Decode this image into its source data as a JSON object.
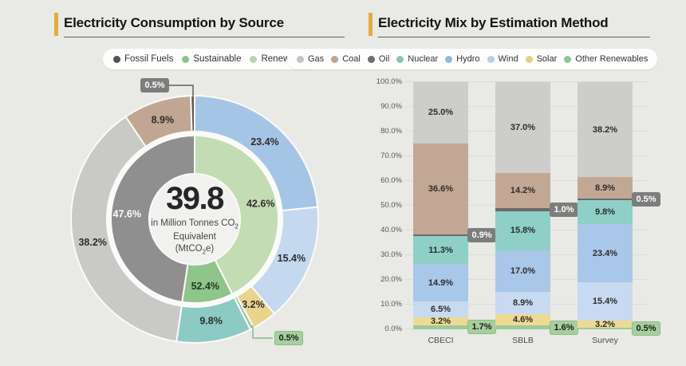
{
  "left": {
    "title": "Electricity Consumption by Source",
    "accent_color": "#e4ab3e",
    "legend": [
      {
        "label": "Fossil Fuels",
        "color": "#545454"
      },
      {
        "label": "Sustainable",
        "color": "#8cc58c"
      },
      {
        "label": "Renewable",
        "color": "#b3d8a9"
      }
    ],
    "center": {
      "value": "39.8",
      "line1": "in Million Tonnes CO",
      "line1_sub": "2",
      "line2": "Equivalent",
      "line3_pre": "(MtCO",
      "line3_sub": "2",
      "line3_post": "e)"
    }
  },
  "right": {
    "title": "Electricity Mix by Estimation Method",
    "accent_color": "#e4ab3e",
    "legend": [
      {
        "label": "Gas",
        "color": "#c4c4c3"
      },
      {
        "label": "Coal",
        "color": "#bfa38f"
      },
      {
        "label": "Oil",
        "color": "#6e6e6e"
      },
      {
        "label": "Nuclear",
        "color": "#82c7be"
      },
      {
        "label": "Hydro",
        "color": "#92b9e0"
      },
      {
        "label": "Wind",
        "color": "#b6cfec"
      },
      {
        "label": "Solar",
        "color": "#e5cd84"
      },
      {
        "label": "Other Renewables",
        "color": "#8cc599"
      }
    ]
  },
  "chart_data": [
    {
      "type": "donut",
      "title": "Electricity Consumption by Source",
      "center_value": "39.8",
      "center_unit": "in Million Tonnes CO2 Equivalent (MtCO2e)",
      "inner_ring": [
        {
          "label": "Renewable",
          "value": 42.6,
          "arc": 42.6,
          "text": "42.6%",
          "color": "#c3dcb3",
          "text_color": "#2d2d2d",
          "label_r": 85
        },
        {
          "label": "Sustainable",
          "value": 52.4,
          "arc": 9.8,
          "text": "52.4%",
          "color": "#8fc48b",
          "text_color": "#24381f",
          "label_r": 85
        },
        {
          "label": "Fossil Fuels",
          "value": 47.6,
          "arc": 47.6,
          "text": "47.6%",
          "color": "#8f8f8f",
          "text_color": "#ffffff",
          "label_r": 85
        }
      ],
      "outer_ring": [
        {
          "label": "Hydro",
          "value": 23.4,
          "text": "23.4%",
          "color": "#a5c5e6",
          "text_color": "#2d2d2d",
          "label_r": 131
        },
        {
          "label": "Wind",
          "value": 15.4,
          "text": "15.4%",
          "color": "#c4d8ef",
          "text_color": "#2d2d2d",
          "label_r": 131
        },
        {
          "label": "Solar",
          "value": 3.2,
          "text": "3.2%",
          "color": "#e9d48d",
          "text_color": "#2d2d2d",
          "label_r": 130
        },
        {
          "label": "Other Renewables",
          "value": 0.5,
          "text": "0.5%",
          "color": "#97c796",
          "callout": "green"
        },
        {
          "label": "Nuclear",
          "value": 9.8,
          "text": "9.8%",
          "color": "#8ccbc3",
          "text_color": "#2d2d2d",
          "label_r": 129
        },
        {
          "label": "Gas",
          "value": 38.2,
          "text": "38.2%",
          "color": "#c9c9c7",
          "text_color": "#2d2d2d",
          "label_r": 131
        },
        {
          "label": "Coal",
          "value": 8.9,
          "text": "8.9%",
          "color": "#c0a693",
          "text_color": "#2d2d2d",
          "label_r": 131
        },
        {
          "label": "Oil",
          "value": 0.5,
          "text": "0.5%",
          "color": "#5a5a5a",
          "callout": "gray"
        }
      ]
    },
    {
      "type": "bar",
      "stacked": true,
      "title": "Electricity Mix by Estimation Method",
      "categories": [
        "CBECI",
        "SBLB",
        "Survey"
      ],
      "series_order": "bottom-to-top",
      "series": [
        {
          "name": "Other Renewables",
          "color": "#9ccb97",
          "values": [
            1.7,
            1.6,
            0.5
          ],
          "callout": "green"
        },
        {
          "name": "Solar",
          "color": "#eeda93",
          "values": [
            3.2,
            4.6,
            3.2
          ]
        },
        {
          "name": "Wind",
          "color": "#c7daf1",
          "values": [
            6.5,
            8.9,
            15.4
          ]
        },
        {
          "name": "Hydro",
          "color": "#a9c7e9",
          "values": [
            14.9,
            17.0,
            23.4
          ]
        },
        {
          "name": "Nuclear",
          "color": "#8ecfc7",
          "values": [
            11.3,
            15.8,
            9.8
          ]
        },
        {
          "name": "Oil",
          "color": "#6a6a6a",
          "values": [
            0.9,
            1.0,
            0.5
          ],
          "callout": "gray"
        },
        {
          "name": "Coal",
          "color": "#c3a795",
          "values": [
            36.6,
            14.2,
            8.9
          ]
        },
        {
          "name": "Gas",
          "color": "#cdcdcb",
          "values": [
            25.0,
            37.0,
            38.2
          ]
        }
      ],
      "y_ticks": [
        "0.0%",
        "10.0%",
        "20.0%",
        "30.0%",
        "40.0%",
        "50.0%",
        "60.0%",
        "70.0%",
        "80.0%",
        "90.0%",
        "100.0%"
      ],
      "ylim": [
        0,
        100
      ],
      "grid": true,
      "legend_position": "top"
    }
  ]
}
